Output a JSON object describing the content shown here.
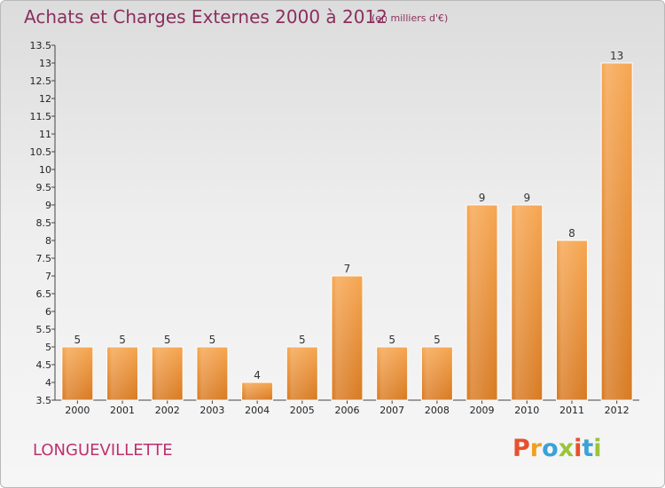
{
  "header": {
    "title": "Achats et Charges Externes 2000 à 2012",
    "unit": "(en milliers d'€)"
  },
  "footer": {
    "commune": "LONGUEVILLETTE",
    "brand": "Proxiti",
    "brand_colors": [
      "#e8502d",
      "#f0a020",
      "#3aa2d8",
      "#9ac43c",
      "#e8502d",
      "#3aa2d8",
      "#9ac43c"
    ]
  },
  "colors": {
    "bar_top": "#f6a651",
    "bar_bottom": "#d87a22",
    "title": "#8a2f5e",
    "commune": "#c0306e"
  },
  "chart_data": {
    "type": "bar",
    "title": "Achats et Charges Externes 2000 à 2012",
    "subtitle": "(en milliers d'€)",
    "categories": [
      "2000",
      "2001",
      "2002",
      "2003",
      "2004",
      "2005",
      "2006",
      "2007",
      "2008",
      "2009",
      "2010",
      "2011",
      "2012"
    ],
    "values": [
      5,
      5,
      5,
      5,
      4,
      5,
      7,
      5,
      5,
      9,
      9,
      8,
      13
    ],
    "value_labels": [
      "5",
      "5",
      "5",
      "5",
      "4",
      "5",
      "7",
      "5",
      "5",
      "9",
      "9",
      "8",
      "13"
    ],
    "ylim": [
      3.5,
      13.5
    ],
    "yticks": [
      3.5,
      4,
      4.5,
      5,
      5.5,
      6,
      6.5,
      7,
      7.5,
      8,
      8.5,
      9,
      9.5,
      10,
      10.5,
      11,
      11.5,
      12,
      12.5,
      13,
      13.5
    ],
    "ytick_labels": [
      "3.5",
      "4",
      "4.5",
      "5",
      "5.5",
      "6",
      "6.5",
      "7",
      "7.5",
      "8",
      "8.5",
      "9",
      "9.5",
      "10",
      "10.5",
      "11",
      "11.5",
      "12",
      "12.5",
      "13",
      "13.5"
    ],
    "xlabel": "",
    "ylabel": "",
    "grid": false,
    "legend": "none"
  }
}
